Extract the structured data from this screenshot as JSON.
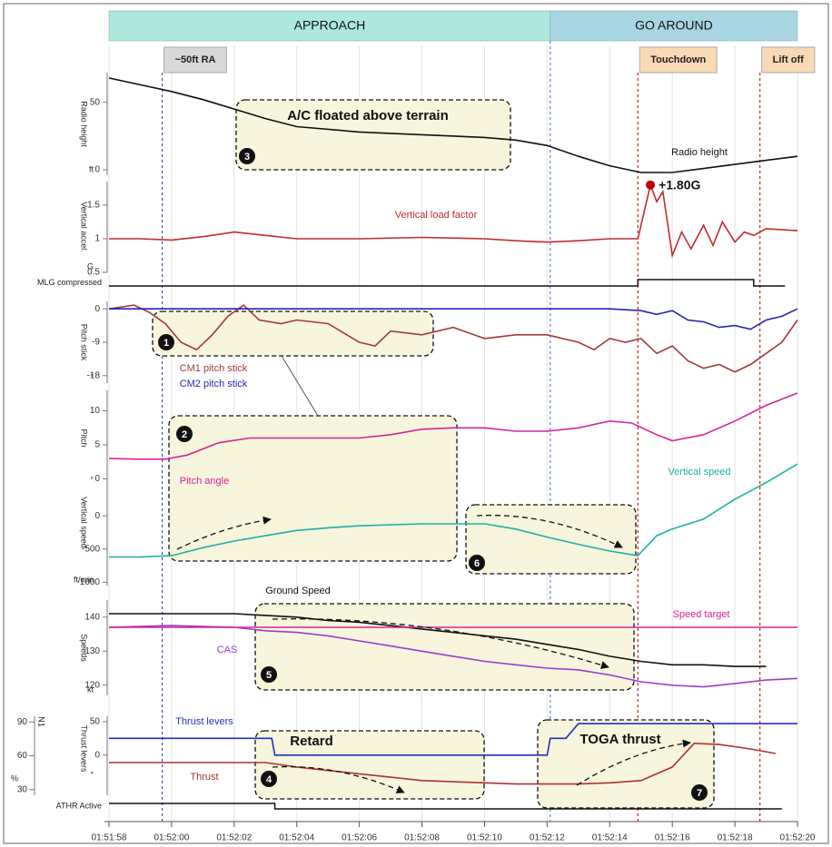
{
  "chart_data": {
    "type": "multi-panel",
    "xlim": [
      6718,
      6740
    ],
    "xticks": [
      {
        "value": 6718,
        "label": "01:51:58"
      },
      {
        "value": 6720,
        "label": "01:52:00"
      },
      {
        "value": 6722,
        "label": "01:52:02"
      },
      {
        "value": 6724,
        "label": "01:52:04"
      },
      {
        "value": 6726,
        "label": "01:52:06"
      },
      {
        "value": 6728,
        "label": "01:52:08"
      },
      {
        "value": 6730,
        "label": "01:52:10"
      },
      {
        "value": 6732,
        "label": "01:52:12"
      },
      {
        "value": 6734,
        "label": "01:52:14"
      },
      {
        "value": 6736,
        "label": "01:52:16"
      },
      {
        "value": 6738,
        "label": "01:52:18"
      },
      {
        "value": 6740,
        "label": "01:52:20"
      }
    ],
    "phases": [
      {
        "label": "APPROACH",
        "start": 6718,
        "end": 6732.1,
        "color": "#aee8dc"
      },
      {
        "label": "GO AROUND",
        "start": 6732.1,
        "end": 6740,
        "color": "#a9d5e2"
      }
    ],
    "events": [
      {
        "label": "~50ft RA",
        "x": 6719.7,
        "color": "#d8d8d8",
        "line_color": "#3a5a9a"
      },
      {
        "label": "Touchdown",
        "x": 6734.9,
        "color": "#f9d9b5",
        "line_color": "#d42020"
      },
      {
        "label": "Lift off",
        "x": 6738.8,
        "color": "#f9d9b5",
        "line_color": "#d42020"
      }
    ],
    "panels": [
      {
        "type": "line",
        "ylabel": "Radio height",
        "yunit": "ft",
        "ylim": [
          -4,
          72
        ],
        "yticks": [
          0,
          50
        ],
        "series": [
          {
            "name": "Radio height",
            "color": "#111111",
            "x": [
              6718,
              6719,
              6720,
              6721,
              6722,
              6723,
              6724,
              6726,
              6728,
              6730,
              6731,
              6732,
              6733,
              6734,
              6735,
              6736,
              6737,
              6738,
              6739,
              6740
            ],
            "values": [
              68,
              63,
              58,
              52,
              45,
              38,
              32,
              28,
              26,
              24,
              22,
              18,
              10,
              3,
              -2,
              -2,
              1,
              4,
              7,
              10
            ]
          }
        ]
      },
      {
        "type": "line",
        "ylabel": "Vertical accel.",
        "yunit": "G",
        "ylim": [
          0.5,
          1.85
        ],
        "yticks": [
          0.5,
          1.0,
          1.5
        ],
        "series": [
          {
            "name": "Vertical load factor",
            "color": "#c42b2b",
            "x": [
              6718,
              6719,
              6720,
              6721,
              6722,
              6723,
              6724,
              6726,
              6728,
              6730,
              6731,
              6732,
              6733,
              6734,
              6734.9,
              6735.1,
              6735.3,
              6735.5,
              6735.7,
              6736,
              6736.3,
              6736.6,
              6737,
              6737.3,
              6737.6,
              6738,
              6738.3,
              6738.6,
              6739,
              6740
            ],
            "values": [
              1.0,
              1.0,
              0.98,
              1.03,
              1.1,
              1.05,
              1.0,
              1.0,
              1.02,
              1.0,
              0.97,
              0.95,
              0.97,
              1.0,
              1.0,
              1.4,
              1.8,
              1.55,
              1.7,
              0.75,
              1.1,
              0.85,
              1.2,
              0.9,
              1.25,
              0.95,
              1.1,
              1.05,
              1.15,
              1.12
            ]
          }
        ]
      },
      {
        "type": "step",
        "ylabel": "MLG compressed",
        "series": [
          {
            "color": "#111111",
            "x": [
              6718,
              6734.9,
              6734.9,
              6738.6,
              6738.6,
              6739.6
            ],
            "values": [
              0,
              0,
              1,
              1,
              0,
              0
            ]
          }
        ]
      },
      {
        "type": "line",
        "ylabel": "Pitch stick",
        "yunit": "°",
        "ylim": [
          -20,
          2
        ],
        "yticks": [
          0,
          -9,
          -18
        ],
        "series": [
          {
            "name": "CM1 pitch stick",
            "color": "#a33a3a",
            "x": [
              6718,
              6718.8,
              6719.3,
              6719.8,
              6720.3,
              6720.8,
              6721.3,
              6721.8,
              6722.3,
              6722.8,
              6723.5,
              6724,
              6725,
              6726,
              6726.5,
              6727,
              6728,
              6729,
              6730,
              6731,
              6732,
              6733,
              6733.5,
              6734,
              6734.5,
              6735,
              6735.5,
              6736,
              6736.5,
              6737,
              6737.5,
              6738,
              6738.5,
              6739,
              6739.5,
              6740
            ],
            "values": [
              0,
              1,
              -1,
              -4,
              -9,
              -11,
              -7,
              -2,
              1,
              -3,
              -4,
              -3,
              -4,
              -9,
              -10,
              -6,
              -7,
              -5,
              -8,
              -7,
              -7,
              -9,
              -11,
              -8,
              -9,
              -8,
              -12,
              -10,
              -14,
              -16,
              -15,
              -17,
              -15,
              -12,
              -9,
              -3
            ]
          },
          {
            "name": "CM2 pitch stick",
            "color": "#2424b4",
            "x": [
              6718,
              6734,
              6735,
              6735.5,
              6736,
              6736.5,
              6737,
              6737.5,
              6738,
              6738.5,
              6739,
              6739.5,
              6740
            ],
            "values": [
              0,
              0,
              -0.5,
              -1.5,
              -0.5,
              -3,
              -3.5,
              -5,
              -4.5,
              -5.5,
              -3,
              -2,
              0
            ]
          }
        ]
      },
      {
        "type": "line",
        "ylabel": "Pitch",
        "yunit": "°",
        "ylim": [
          -1,
          13
        ],
        "yticks": [
          10,
          5,
          0
        ],
        "series": [
          {
            "name": "Pitch angle",
            "color": "#d6249a",
            "x": [
              6718,
              6719,
              6719.8,
              6720.5,
              6721.5,
              6722.5,
              6724,
              6726,
              6727,
              6728,
              6729,
              6730,
              6731,
              6732,
              6733,
              6734,
              6734.7,
              6735.5,
              6736,
              6737,
              6738,
              6739,
              6740
            ],
            "values": [
              3,
              2.9,
              2.9,
              3.5,
              5.3,
              6,
              6,
              6,
              6.5,
              7.3,
              7.5,
              7.5,
              7,
              7,
              7.5,
              8.5,
              8.2,
              6.5,
              5.6,
              6.5,
              8.5,
              10.8,
              12.6
            ]
          }
        ]
      },
      {
        "type": "line",
        "ylabel": "Vertical speed",
        "yunit": "ft/min",
        "ylim": [
          -1050,
          850
        ],
        "yticks": [
          0,
          -500,
          -1000
        ],
        "series": [
          {
            "name": "Vertical speed",
            "color": "#1fb0a6",
            "x": [
              6718,
              6719,
              6720,
              6721,
              6722,
              6723,
              6724,
              6725,
              6726,
              6728,
              6730,
              6731,
              6732,
              6733,
              6734,
              6734.9,
              6735.1,
              6735.5,
              6736,
              6737,
              6738,
              6739,
              6740
            ],
            "values": [
              -620,
              -620,
              -600,
              -480,
              -380,
              -300,
              -220,
              -180,
              -150,
              -120,
              -120,
              -200,
              -320,
              -430,
              -530,
              -600,
              -500,
              -300,
              -200,
              -50,
              250,
              500,
              780
            ]
          }
        ]
      },
      {
        "type": "line",
        "ylabel": "Speeds",
        "yunit": "kt",
        "ylim": [
          117,
          145
        ],
        "yticks": [
          140,
          130,
          120
        ],
        "series": [
          {
            "name": "Ground Speed",
            "color": "#111111",
            "x": [
              6718,
              6722,
              6723,
              6724,
              6725,
              6726,
              6727,
              6728,
              6729,
              6730,
              6731,
              6732,
              6733,
              6734,
              6735,
              6736,
              6737,
              6738,
              6739
            ],
            "values": [
              141,
              141,
              140.5,
              140,
              139,
              138.5,
              137.5,
              136.5,
              135.5,
              134.5,
              133.5,
              132,
              130.5,
              128.5,
              127,
              126,
              126,
              125.5,
              125.5
            ]
          },
          {
            "name": "CAS",
            "color": "#9a3cd0",
            "x": [
              6718,
              6720,
              6722,
              6723,
              6724,
              6725,
              6726,
              6727,
              6728,
              6729,
              6730,
              6731,
              6732,
              6733,
              6734,
              6735,
              6736,
              6737,
              6738,
              6739,
              6740
            ],
            "values": [
              137,
              137.5,
              137,
              136,
              135.5,
              134.5,
              133,
              131.5,
              130,
              128.5,
              127,
              126,
              125,
              124.5,
              123,
              121,
              120,
              119.5,
              120.5,
              121.5,
              122
            ]
          },
          {
            "name": "Speed target",
            "color": "#d6249a",
            "x": [
              6718,
              6740
            ],
            "values": [
              137,
              137
            ]
          }
        ]
      },
      {
        "type": "line",
        "ylabel": "N1",
        "yunit": "%",
        "ylim": [
          25,
          95
        ],
        "yticks": [
          90,
          60,
          30
        ],
        "y2label": "Thrust levers",
        "y2unit": "°",
        "y2lim": [
          -60,
          58
        ],
        "y2ticks": [
          50,
          0
        ],
        "series": [
          {
            "name": "Thrust levers",
            "color": "#2030c0",
            "axis": "y2",
            "x": [
              6718,
              6723.2,
              6723.3,
              6732,
              6732.1,
              6732.6,
              6733,
              6740
            ],
            "values": [
              25,
              25,
              0,
              0,
              25,
              25,
              47,
              47
            ]
          },
          {
            "name": "Thrust",
            "color": "#b03030",
            "x": [
              6718,
              6723,
              6724,
              6725,
              6726,
              6727,
              6728,
              6729,
              6730,
              6731,
              6732,
              6733,
              6734,
              6735,
              6736,
              6736.7,
              6737.5,
              6738.5,
              6739.3
            ],
            "values": [
              54,
              54,
              50,
              47,
              44,
              41,
              38,
              37,
              36,
              35,
              35,
              35,
              36,
              38,
              50,
              71,
              70,
              66,
              62
            ]
          }
        ]
      },
      {
        "type": "step",
        "ylabel": "ATHR Active",
        "series": [
          {
            "color": "#111111",
            "x": [
              6718,
              6723.3,
              6723.3,
              6739.5
            ],
            "values": [
              1,
              1,
              0,
              0
            ]
          }
        ]
      }
    ],
    "annotations": [
      "A/C floated above terrain",
      "Retard",
      "TOGA thrust",
      "+1.80G"
    ],
    "markers": [
      "1",
      "2",
      "3",
      "4",
      "5",
      "6",
      "7"
    ]
  }
}
